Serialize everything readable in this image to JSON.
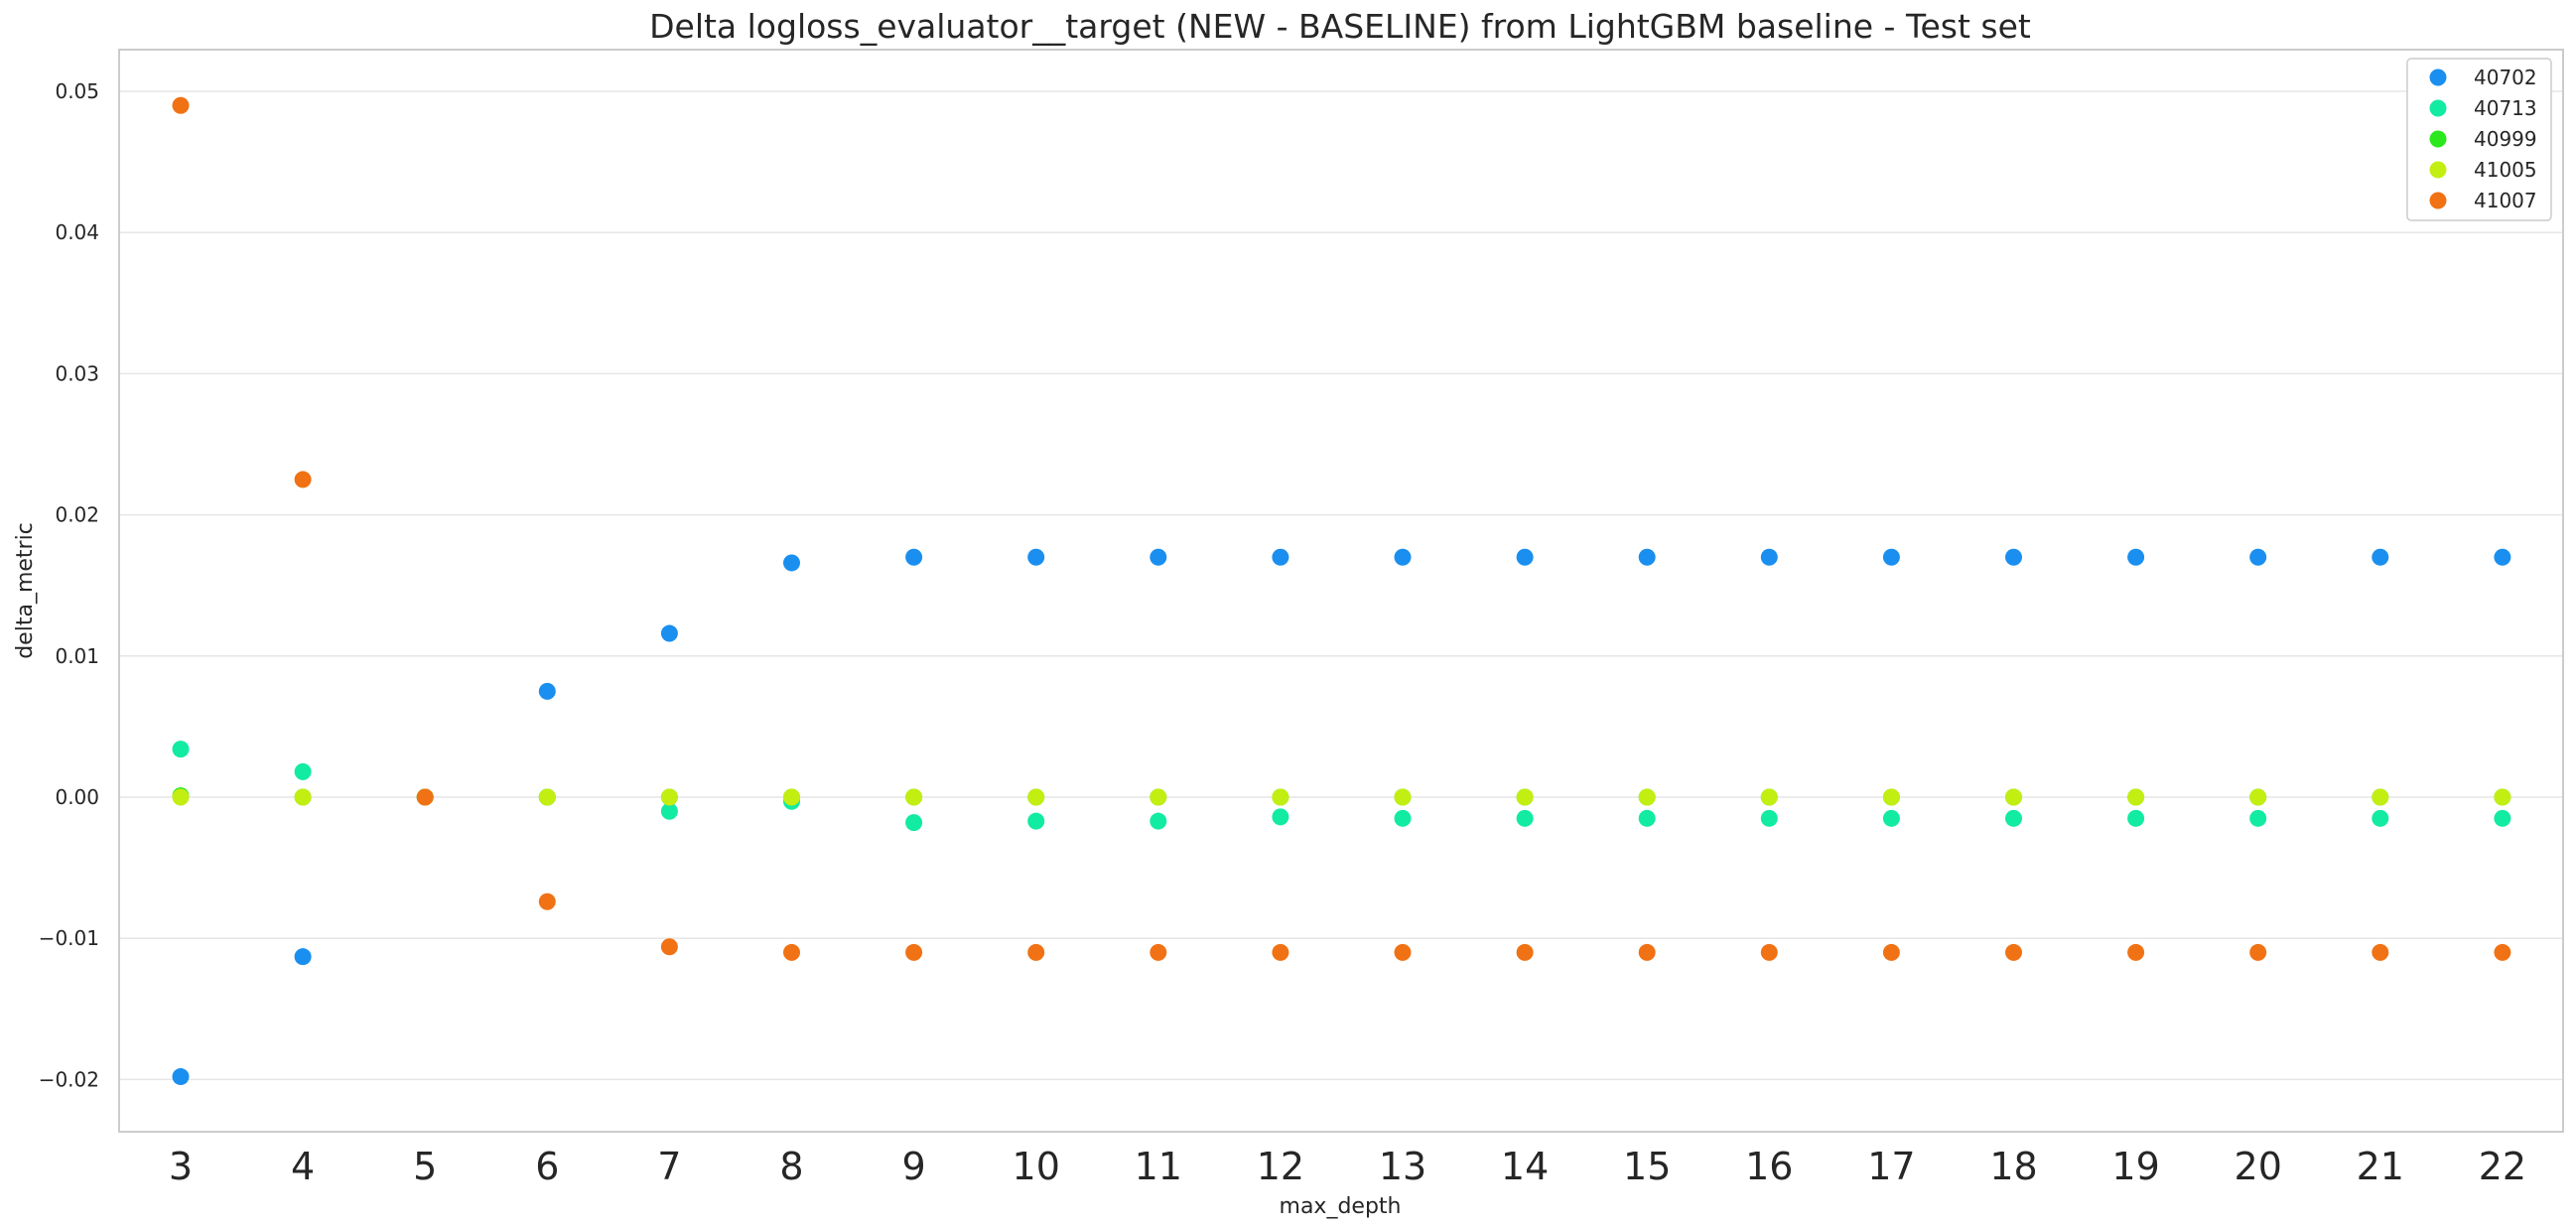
{
  "chart_data": {
    "type": "scatter",
    "title": "Delta logloss_evaluator__target (NEW - BASELINE) from LightGBM baseline - Test set",
    "xlabel": "max_depth",
    "ylabel": "delta_metric",
    "categories": [
      "3",
      "4",
      "5",
      "6",
      "7",
      "8",
      "9",
      "10",
      "11",
      "12",
      "13",
      "14",
      "15",
      "16",
      "17",
      "18",
      "19",
      "20",
      "21",
      "22"
    ],
    "ylim": [
      -0.0237,
      0.0528
    ],
    "yticks": [
      "−0.02",
      "−0.01",
      "0.00",
      "0.01",
      "0.02",
      "0.03",
      "0.04",
      "0.05"
    ],
    "ytick_values": [
      -0.02,
      -0.01,
      0.0,
      0.01,
      0.02,
      0.03,
      0.04,
      0.05
    ],
    "grid": true,
    "legend_position": "top-right",
    "series": [
      {
        "name": "40702",
        "color": "#1a8fef",
        "values": [
          -0.0198,
          -0.0113,
          0.0,
          0.0075,
          0.0116,
          0.0166,
          0.017,
          0.017,
          0.017,
          0.017,
          0.017,
          0.017,
          0.017,
          0.017,
          0.017,
          0.017,
          0.017,
          0.017,
          0.017,
          0.017
        ]
      },
      {
        "name": "40713",
        "color": "#12eba2",
        "values": [
          0.0034,
          0.0018,
          0.0,
          0.0,
          -0.001,
          -0.0003,
          -0.0018,
          -0.0017,
          -0.0017,
          -0.0014,
          -0.0015,
          -0.0015,
          -0.0015,
          -0.0015,
          -0.0015,
          -0.0015,
          -0.0015,
          -0.0015,
          -0.0015,
          -0.0015
        ]
      },
      {
        "name": "40999",
        "color": "#2ae81c",
        "values": [
          0.0001,
          0.0,
          0.0,
          0.0,
          0.0,
          0.0,
          0.0,
          0.0,
          0.0,
          0.0,
          0.0,
          0.0,
          0.0,
          0.0,
          0.0,
          0.0,
          0.0,
          0.0,
          0.0,
          0.0
        ]
      },
      {
        "name": "41005",
        "color": "#c3ee12",
        "values": [
          0.0,
          0.0,
          0.0,
          0.0,
          0.0,
          0.0,
          0.0,
          0.0,
          0.0,
          0.0,
          0.0,
          0.0,
          0.0,
          0.0,
          0.0,
          0.0,
          0.0,
          0.0,
          0.0,
          0.0
        ]
      },
      {
        "name": "41007",
        "color": "#f07214",
        "values": [
          0.049,
          0.0225,
          0.0,
          -0.0074,
          -0.0106,
          -0.011,
          -0.011,
          -0.011,
          -0.011,
          -0.011,
          -0.011,
          -0.011,
          -0.011,
          -0.011,
          -0.011,
          -0.011,
          -0.011,
          -0.011,
          -0.011,
          -0.011
        ]
      }
    ]
  }
}
